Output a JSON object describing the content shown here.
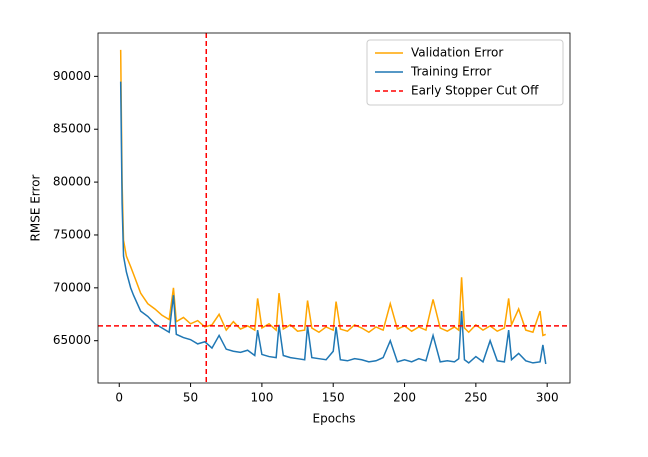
{
  "chart_data": {
    "type": "line",
    "xlabel": "Epochs",
    "ylabel": "RMSE Error",
    "x": [
      1,
      2,
      3,
      5,
      8,
      10,
      15,
      20,
      25,
      30,
      35,
      38,
      40,
      45,
      50,
      55,
      60,
      65,
      70,
      75,
      80,
      85,
      90,
      95,
      97,
      100,
      105,
      110,
      112,
      115,
      120,
      125,
      130,
      132,
      135,
      140,
      145,
      150,
      152,
      155,
      160,
      165,
      170,
      175,
      180,
      185,
      190,
      195,
      200,
      205,
      210,
      215,
      220,
      225,
      230,
      235,
      238,
      240,
      242,
      245,
      250,
      255,
      260,
      265,
      270,
      273,
      275,
      280,
      285,
      290,
      295,
      297,
      299
    ],
    "series": [
      {
        "name": "Validation Error",
        "color": "#ffa500",
        "values": [
          92500,
          80000,
          74500,
          73000,
          72000,
          71300,
          69500,
          68500,
          68000,
          67400,
          67000,
          70000,
          66800,
          67200,
          66600,
          66900,
          66300,
          66500,
          67500,
          66000,
          66800,
          66100,
          66400,
          66000,
          69000,
          66200,
          66600,
          66000,
          69500,
          66100,
          66500,
          65900,
          66000,
          68800,
          66200,
          65800,
          66300,
          66000,
          68700,
          66100,
          65900,
          66500,
          66200,
          65800,
          66300,
          66000,
          68500,
          66100,
          66400,
          65900,
          66300,
          66000,
          68900,
          66200,
          65900,
          66300,
          66000,
          71000,
          66200,
          65800,
          66500,
          66000,
          66400,
          65900,
          66200,
          69000,
          66500,
          68000,
          66000,
          65800,
          67800,
          65500,
          65600
        ]
      },
      {
        "name": "Training Error",
        "color": "#1f77b4",
        "values": [
          89500,
          78000,
          73000,
          71500,
          70000,
          69300,
          67800,
          67300,
          66600,
          66200,
          65800,
          69300,
          65600,
          65300,
          65100,
          64700,
          64900,
          64300,
          65500,
          64200,
          64000,
          63900,
          64100,
          63600,
          66000,
          63700,
          63500,
          63400,
          66500,
          63600,
          63400,
          63300,
          63200,
          66400,
          63400,
          63300,
          63200,
          64000,
          66300,
          63200,
          63100,
          63300,
          63200,
          63000,
          63100,
          63400,
          65000,
          63000,
          63200,
          63000,
          63300,
          63100,
          65500,
          63000,
          63100,
          63000,
          63300,
          67800,
          63200,
          62900,
          63500,
          63000,
          65000,
          63100,
          63000,
          66000,
          63200,
          63800,
          63100,
          62900,
          63000,
          64600,
          62800
        ]
      }
    ],
    "cutoff": {
      "name": "Early Stopper Cut Off",
      "color": "#ff0000",
      "x": 61,
      "y": 66400
    },
    "xlim": [
      -14.9,
      316
    ],
    "ylim": [
      61000,
      94100
    ],
    "xticks": [
      0,
      50,
      100,
      150,
      200,
      250,
      300
    ],
    "yticks": [
      65000,
      70000,
      75000,
      80000,
      85000,
      90000
    ],
    "legend": "upper right"
  }
}
